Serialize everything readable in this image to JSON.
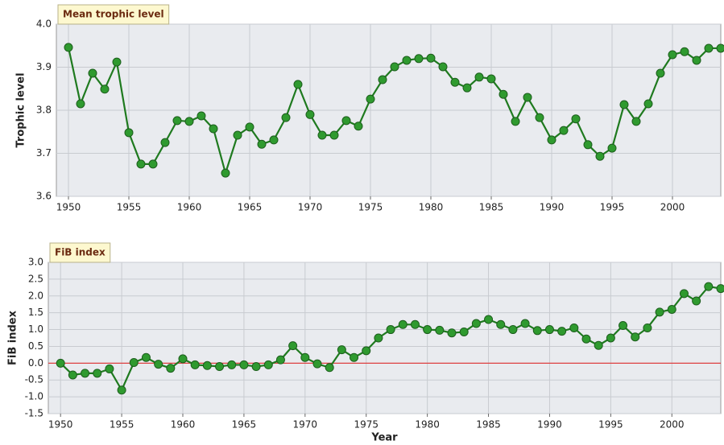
{
  "chart_data": [
    {
      "type": "line",
      "title": "Mean trophic level",
      "y_label": "Trophic level",
      "x": [
        1950,
        1951,
        1952,
        1953,
        1954,
        1955,
        1956,
        1957,
        1958,
        1959,
        1960,
        1961,
        1962,
        1963,
        1964,
        1965,
        1966,
        1967,
        1968,
        1969,
        1970,
        1971,
        1972,
        1973,
        1974,
        1975,
        1976,
        1977,
        1978,
        1979,
        1980,
        1981,
        1982,
        1983,
        1984,
        1985,
        1986,
        1987,
        1988,
        1989,
        1990,
        1991,
        1992,
        1993,
        1994,
        1995,
        1996,
        1997,
        1998,
        1999,
        2000,
        2001,
        2002,
        2003,
        2004
      ],
      "values": [
        3.946,
        3.815,
        3.886,
        3.849,
        3.912,
        3.748,
        3.675,
        3.675,
        3.725,
        3.776,
        3.774,
        3.787,
        3.757,
        3.654,
        3.742,
        3.761,
        3.721,
        3.731,
        3.783,
        3.86,
        3.79,
        3.742,
        3.742,
        3.776,
        3.763,
        3.826,
        3.871,
        3.901,
        3.916,
        3.92,
        3.921,
        3.901,
        3.865,
        3.852,
        3.877,
        3.873,
        3.837,
        3.774,
        3.83,
        3.783,
        3.731,
        3.753,
        3.78,
        3.72,
        3.693,
        3.712,
        3.813,
        3.774,
        3.815,
        3.886,
        3.929,
        3.936,
        3.916,
        3.944,
        3.944
      ],
      "color": "#2f9a2f",
      "xlim": [
        1949,
        2004
      ],
      "xticks": [
        1950,
        1955,
        1960,
        1965,
        1970,
        1975,
        1980,
        1985,
        1990,
        1995,
        2000
      ],
      "ylim": [
        3.6,
        4.0
      ],
      "yticks": [
        3.6,
        3.7,
        3.8,
        3.9,
        {
          "value": 4.0,
          "label": "4.0"
        }
      ],
      "grid": true
    },
    {
      "type": "line",
      "title": "FiB index",
      "y_label": "FiB index",
      "x_label": "Year",
      "x": [
        1950,
        1951,
        1952,
        1953,
        1954,
        1955,
        1956,
        1957,
        1958,
        1959,
        1960,
        1961,
        1962,
        1963,
        1964,
        1965,
        1966,
        1967,
        1968,
        1969,
        1970,
        1971,
        1972,
        1973,
        1974,
        1975,
        1976,
        1977,
        1978,
        1979,
        1980,
        1981,
        1982,
        1983,
        1984,
        1985,
        1986,
        1987,
        1988,
        1989,
        1990,
        1991,
        1992,
        1993,
        1994,
        1995,
        1996,
        1997,
        1998,
        1999,
        2000,
        2001,
        2002,
        2003,
        2004
      ],
      "values": [
        0,
        -0.35,
        -0.3,
        -0.3,
        -0.17,
        -0.8,
        0.02,
        0.17,
        -0.03,
        -0.15,
        0.13,
        -0.05,
        -0.07,
        -0.1,
        -0.05,
        -0.05,
        -0.1,
        -0.05,
        0.1,
        0.52,
        0.17,
        -0.02,
        -0.13,
        0.4,
        0.17,
        0.37,
        0.75,
        1.0,
        1.15,
        1.15,
        1.0,
        0.98,
        0.9,
        0.93,
        1.18,
        1.3,
        1.15,
        1.0,
        1.18,
        0.97,
        1.0,
        0.95,
        1.05,
        0.72,
        0.53,
        0.75,
        1.12,
        0.78,
        1.05,
        1.52,
        1.6,
        2.07,
        1.85,
        2.28,
        2.22
      ],
      "color": "#2f9a2f",
      "xlim": [
        1949,
        2004
      ],
      "xticks": [
        1950,
        1955,
        1960,
        1965,
        1970,
        1975,
        1980,
        1985,
        1990,
        1995,
        2000
      ],
      "ylim": [
        -1.5,
        3.0
      ],
      "yticks": [
        {
          "value": -1.5,
          "label": "-1.5"
        },
        {
          "value": -1.0,
          "label": "-1.0"
        },
        -0.5,
        {
          "value": 0.0,
          "label": "0.0"
        },
        0.5,
        {
          "value": 1.0,
          "label": "1.0"
        },
        1.5,
        {
          "value": 2.0,
          "label": "2.0"
        },
        2.5,
        {
          "value": 3.0,
          "label": "3.0"
        }
      ],
      "reference_line": {
        "value": 0,
        "color": "#e03030"
      },
      "grid": true
    }
  ]
}
